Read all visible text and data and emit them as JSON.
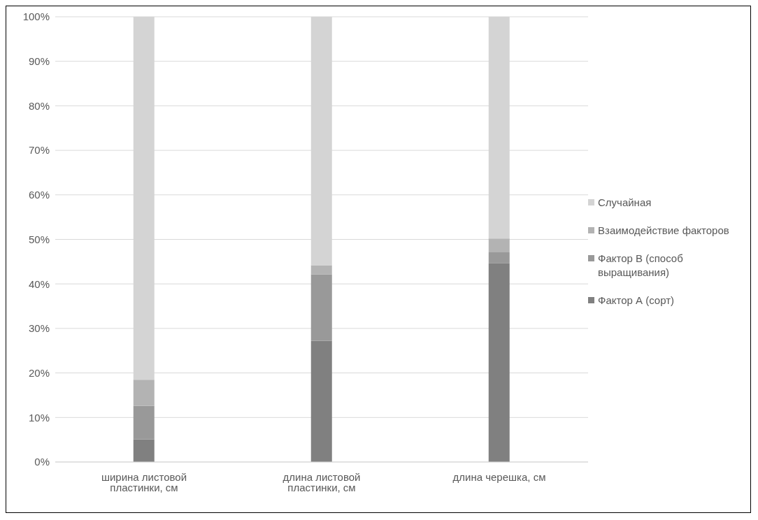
{
  "chart_data": {
    "type": "bar",
    "stacked": true,
    "categories": [
      "ширина листовой пластинки, см",
      "длина листовой пластинки, см",
      "длина черешка, см"
    ],
    "series": [
      {
        "name": "Фактор А (сорт)",
        "color": "#808080",
        "values": [
          5.1,
          27.2,
          44.6
        ]
      },
      {
        "name": "Фактор В (способ выращивания)",
        "color": "#999999",
        "values": [
          7.5,
          14.9,
          2.5
        ]
      },
      {
        "name": "Взаимодействие факторов",
        "color": "#b3b3b3",
        "values": [
          5.9,
          2.1,
          3.1
        ]
      },
      {
        "name": "Случайная",
        "color": "#d4d4d4",
        "values": [
          81.5,
          55.8,
          49.8
        ]
      }
    ],
    "ylim": [
      0,
      100
    ],
    "yticks": [
      {
        "value": 0,
        "label": "0%"
      },
      {
        "value": 10,
        "label": "10%"
      },
      {
        "value": 20,
        "label": "20%"
      },
      {
        "value": 30,
        "label": "30%"
      },
      {
        "value": 40,
        "label": "40%"
      },
      {
        "value": 50,
        "label": "50%"
      },
      {
        "value": 60,
        "label": "60%"
      },
      {
        "value": 70,
        "label": "70%"
      },
      {
        "value": 80,
        "label": "80%"
      },
      {
        "value": 90,
        "label": "90%"
      },
      {
        "value": 100,
        "label": "100%"
      }
    ],
    "grid": "y",
    "legend": "right"
  }
}
